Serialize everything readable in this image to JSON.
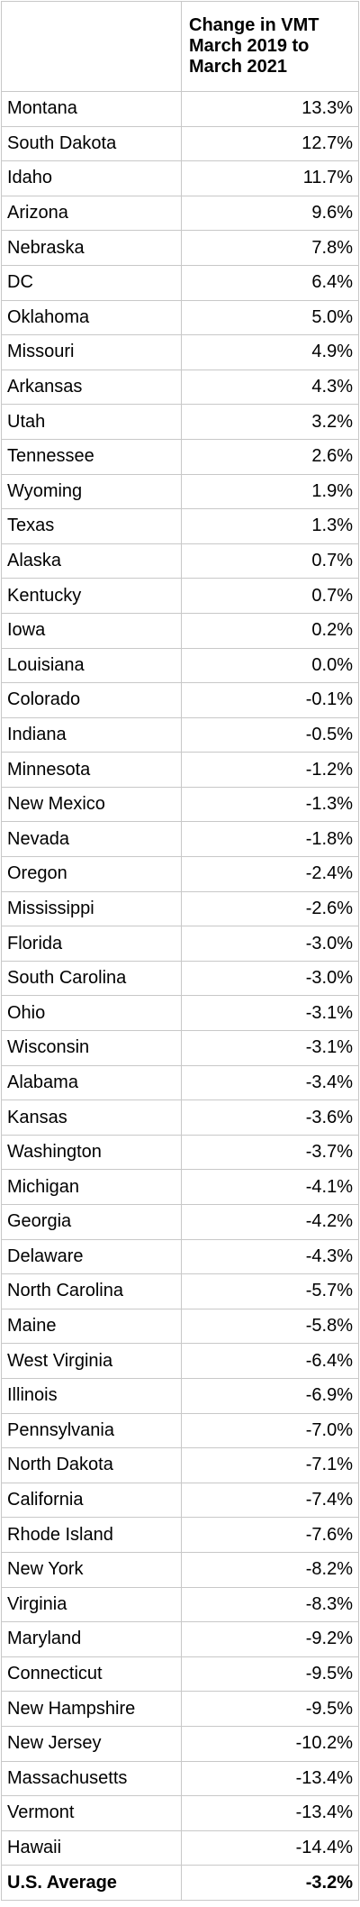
{
  "table": {
    "header": [
      "",
      "Change in VMT March 2019 to March 2021"
    ],
    "rows": [
      [
        "Montana",
        "13.3%"
      ],
      [
        "South Dakota",
        "12.7%"
      ],
      [
        "Idaho",
        "11.7%"
      ],
      [
        "Arizona",
        "9.6%"
      ],
      [
        "Nebraska",
        "7.8%"
      ],
      [
        "DC",
        "6.4%"
      ],
      [
        "Oklahoma",
        "5.0%"
      ],
      [
        "Missouri",
        "4.9%"
      ],
      [
        "Arkansas",
        "4.3%"
      ],
      [
        "Utah",
        "3.2%"
      ],
      [
        "Tennessee",
        "2.6%"
      ],
      [
        "Wyoming",
        "1.9%"
      ],
      [
        "Texas",
        "1.3%"
      ],
      [
        "Alaska",
        "0.7%"
      ],
      [
        "Kentucky",
        "0.7%"
      ],
      [
        "Iowa",
        "0.2%"
      ],
      [
        "Louisiana",
        "0.0%"
      ],
      [
        "Colorado",
        "-0.1%"
      ],
      [
        "Indiana",
        "-0.5%"
      ],
      [
        "Minnesota",
        "-1.2%"
      ],
      [
        "New Mexico",
        "-1.3%"
      ],
      [
        "Nevada",
        "-1.8%"
      ],
      [
        "Oregon",
        "-2.4%"
      ],
      [
        "Mississippi",
        "-2.6%"
      ],
      [
        "Florida",
        "-3.0%"
      ],
      [
        "South Carolina",
        "-3.0%"
      ],
      [
        "Ohio",
        "-3.1%"
      ],
      [
        "Wisconsin",
        "-3.1%"
      ],
      [
        "Alabama",
        "-3.4%"
      ],
      [
        "Kansas",
        "-3.6%"
      ],
      [
        "Washington",
        "-3.7%"
      ],
      [
        "Michigan",
        "-4.1%"
      ],
      [
        "Georgia",
        "-4.2%"
      ],
      [
        "Delaware",
        "-4.3%"
      ],
      [
        "North Carolina",
        "-5.7%"
      ],
      [
        "Maine",
        "-5.8%"
      ],
      [
        "West Virginia",
        "-6.4%"
      ],
      [
        "Illinois",
        "-6.9%"
      ],
      [
        "Pennsylvania",
        "-7.0%"
      ],
      [
        "North Dakota",
        "-7.1%"
      ],
      [
        "California",
        "-7.4%"
      ],
      [
        "Rhode Island",
        "-7.6%"
      ],
      [
        "New York",
        "-8.2%"
      ],
      [
        "Virginia",
        "-8.3%"
      ],
      [
        "Maryland",
        "-9.2%"
      ],
      [
        "Connecticut",
        "-9.5%"
      ],
      [
        "New Hampshire",
        "-9.5%"
      ],
      [
        "New Jersey",
        "-10.2%"
      ],
      [
        "Massachusetts",
        "-13.4%"
      ],
      [
        "Vermont",
        "-13.4%"
      ],
      [
        "Hawaii",
        "-14.4%"
      ]
    ],
    "total": [
      "U.S. Average",
      "-3.2%"
    ]
  }
}
